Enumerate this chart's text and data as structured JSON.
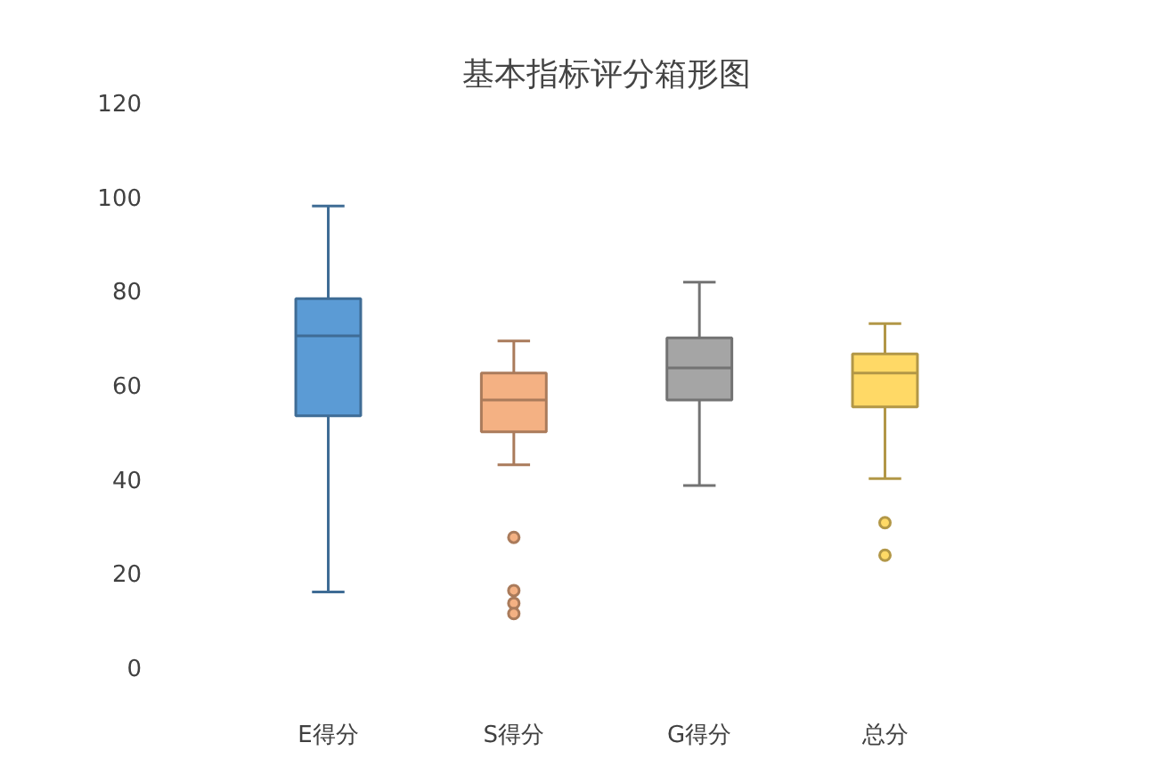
{
  "chart_data": {
    "type": "box",
    "title": "基本指标评分箱形图",
    "categories": [
      "E得分",
      "S得分",
      "G得分",
      "总分"
    ],
    "colors": [
      "#5b9bd5",
      "#f4b183",
      "#a5a5a5",
      "#ffd966"
    ],
    "boxes": [
      {
        "low": 16,
        "q1": 53.4,
        "median": 70.4,
        "q3": 78.3,
        "high": 98
      },
      {
        "low": 43,
        "q1": 50,
        "median": 56.8,
        "q3": 62.5,
        "high": 69.3,
        "outliers": [
          27.6,
          16.3,
          13.6,
          11.4
        ]
      },
      {
        "low": 38.6,
        "q1": 56.8,
        "median": 63.6,
        "q3": 70,
        "high": 81.8
      },
      {
        "low": 40.1,
        "q1": 55.3,
        "median": 62.5,
        "q3": 66.6,
        "high": 73,
        "outliers": [
          30.7,
          23.8
        ]
      }
    ],
    "ylim": [
      0,
      120
    ],
    "yticks": [
      0,
      20,
      40,
      60,
      80,
      100,
      120
    ],
    "grid": false
  }
}
